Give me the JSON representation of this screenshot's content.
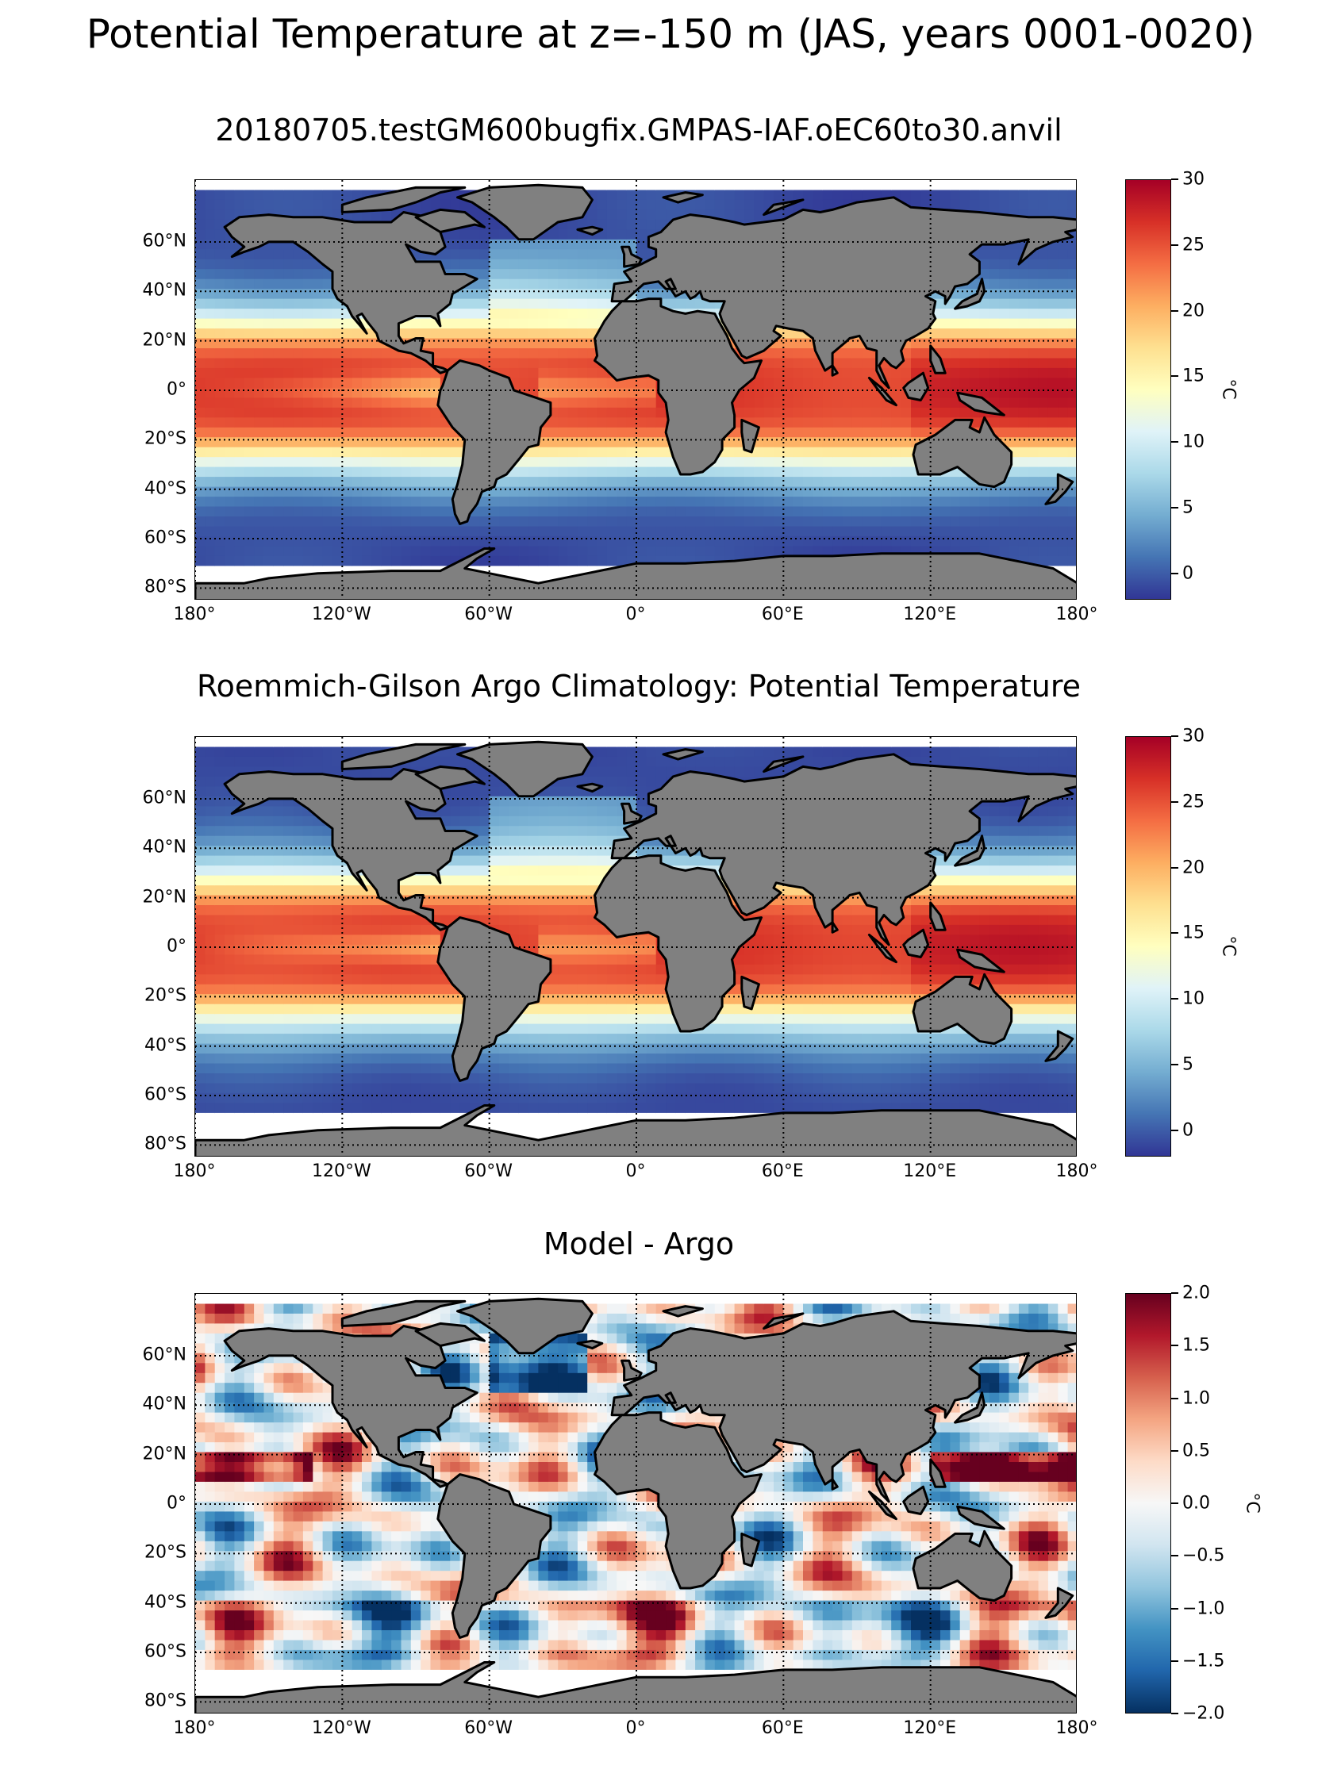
{
  "figure": {
    "suptitle": "Potential Temperature at z=-150 m (JAS, years 0001-0020)"
  },
  "lat_labels": [
    "60°N",
    "40°N",
    "20°N",
    "0°",
    "20°S",
    "40°S",
    "60°S",
    "80°S"
  ],
  "lon_labels": [
    "180°",
    "120°W",
    "60°W",
    "0°",
    "60°E",
    "120°E",
    "180°"
  ],
  "colors": {
    "land": "#808080",
    "coastline": "#000000",
    "grid": "#000000",
    "missing": "#ffffff",
    "colormap": "RdYlBu_r",
    "colormap_diff": "RdBu_r"
  },
  "chart_data": [
    {
      "type": "heatmap",
      "title": "20180705.testGM600bugfix.GMPAS-IAF.oEC60to30.anvil",
      "projection": "PlateCarree",
      "xlim": [
        -180,
        180
      ],
      "ylim": [
        -85,
        85
      ],
      "colorbar": {
        "label": "°C",
        "range": [
          -2,
          30
        ],
        "tick_values": [
          0,
          5,
          10,
          15,
          20,
          25,
          30
        ],
        "tick_labels": [
          "0",
          "5",
          "10",
          "15",
          "20",
          "25",
          "30"
        ]
      }
    },
    {
      "type": "heatmap",
      "title": "Roemmich-Gilson Argo Climatology: Potential Temperature",
      "projection": "PlateCarree",
      "xlim": [
        -180,
        180
      ],
      "ylim": [
        -85,
        85
      ],
      "colorbar": {
        "label": "°C",
        "range": [
          -2,
          30
        ],
        "tick_values": [
          0,
          5,
          10,
          15,
          20,
          25,
          30
        ],
        "tick_labels": [
          "0",
          "5",
          "10",
          "15",
          "20",
          "25",
          "30"
        ]
      }
    },
    {
      "type": "heatmap",
      "title": "Model - Argo",
      "projection": "PlateCarree",
      "xlim": [
        -180,
        180
      ],
      "ylim": [
        -85,
        85
      ],
      "colorbar": {
        "label": "°C",
        "range": [
          -2,
          2
        ],
        "tick_values": [
          -2,
          -1.5,
          -1,
          -0.5,
          0,
          0.5,
          1,
          1.5,
          2
        ],
        "tick_labels": [
          "−2.0",
          "−1.5",
          "−1.0",
          "−0.5",
          "0.0",
          "0.5",
          "1.0",
          "1.5",
          "2.0"
        ]
      }
    }
  ]
}
